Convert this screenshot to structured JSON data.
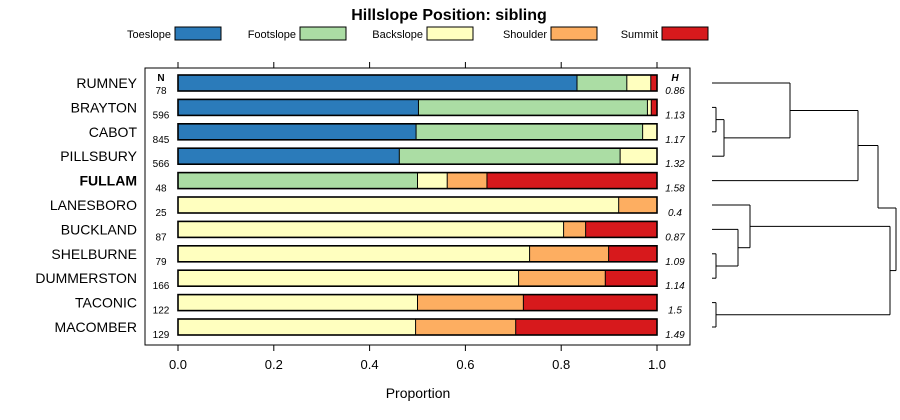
{
  "chart_data": {
    "type": "bar",
    "orientation": "horizontal-stacked",
    "title": "Hillslope Position: sibling",
    "xlabel": "Proportion",
    "xlim": [
      0,
      1
    ],
    "xticks": [
      "0.0",
      "0.2",
      "0.4",
      "0.6",
      "0.8",
      "1.0"
    ],
    "n_header": "N",
    "h_header": "H",
    "highlight_category": "FULLAM",
    "series": [
      {
        "name": "Toeslope",
        "color": "#2b7bba"
      },
      {
        "name": "Footslope",
        "color": "#abdda4"
      },
      {
        "name": "Backslope",
        "color": "#ffffbf"
      },
      {
        "name": "Shoulder",
        "color": "#fdae61"
      },
      {
        "name": "Summit",
        "color": "#d7191c"
      }
    ],
    "rows": [
      {
        "category": "RUMNEY",
        "n": "78",
        "h": "0.86",
        "values": [
          0.833,
          0.104,
          0.05,
          0.0,
          0.013
        ]
      },
      {
        "category": "BRAYTON",
        "n": "596",
        "h": "1.13",
        "values": [
          0.502,
          0.478,
          0.008,
          0.0,
          0.012
        ]
      },
      {
        "category": "CABOT",
        "n": "845",
        "h": "1.17",
        "values": [
          0.497,
          0.473,
          0.03,
          0.0,
          0.0
        ]
      },
      {
        "category": "PILLSBURY",
        "n": "566",
        "h": "1.32",
        "values": [
          0.462,
          0.461,
          0.077,
          0.0,
          0.0
        ]
      },
      {
        "category": "FULLAM",
        "n": "48",
        "h": "1.58",
        "values": [
          0.0,
          0.5,
          0.062,
          0.083,
          0.355
        ]
      },
      {
        "category": "LANESBORO",
        "n": "25",
        "h": "0.4",
        "values": [
          0.0,
          0.0,
          0.92,
          0.08,
          0.0
        ]
      },
      {
        "category": "BUCKLAND",
        "n": "87",
        "h": "0.87",
        "values": [
          0.0,
          0.0,
          0.805,
          0.046,
          0.149
        ]
      },
      {
        "category": "SHELBURNE",
        "n": "79",
        "h": "1.09",
        "values": [
          0.0,
          0.0,
          0.734,
          0.165,
          0.101
        ]
      },
      {
        "category": "DUMMERSTON",
        "n": "166",
        "h": "1.14",
        "values": [
          0.0,
          0.0,
          0.711,
          0.181,
          0.108
        ]
      },
      {
        "category": "TACONIC",
        "n": "122",
        "h": "1.5",
        "values": [
          0.0,
          0.0,
          0.5,
          0.221,
          0.279
        ]
      },
      {
        "category": "MACOMBER",
        "n": "129",
        "h": "1.49",
        "values": [
          0.0,
          0.0,
          0.496,
          0.209,
          0.295
        ]
      }
    ],
    "dendrogram": {
      "groups": [
        [
          0,
          1,
          2,
          3,
          4
        ],
        [
          5,
          6,
          7,
          8,
          9,
          10
        ]
      ]
    }
  }
}
